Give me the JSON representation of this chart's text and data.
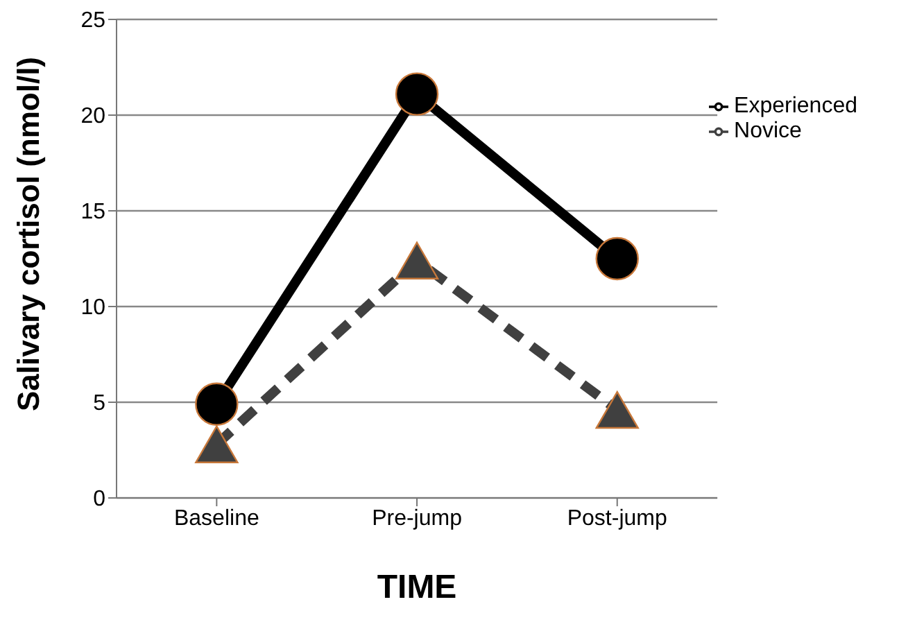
{
  "chart_data": {
    "type": "line",
    "xlabel": "TIME",
    "ylabel": "Salivary cortisol (nmol/l)",
    "categories": [
      "Baseline",
      "Pre-jump",
      "Post-jump"
    ],
    "series": [
      {
        "name": "Experienced",
        "color": "#000000",
        "values": [
          4.9,
          21.1,
          12.5
        ],
        "marker": "circle",
        "line_style": "solid"
      },
      {
        "name": "Novice",
        "color": "#404040",
        "values": [
          2.8,
          12.4,
          4.6
        ],
        "marker": "triangle",
        "line_style": "dashed"
      }
    ],
    "ylim": [
      0,
      25
    ],
    "yticks": [
      0,
      5,
      10,
      15,
      20,
      25
    ],
    "grid": "y",
    "legend": "top right"
  }
}
